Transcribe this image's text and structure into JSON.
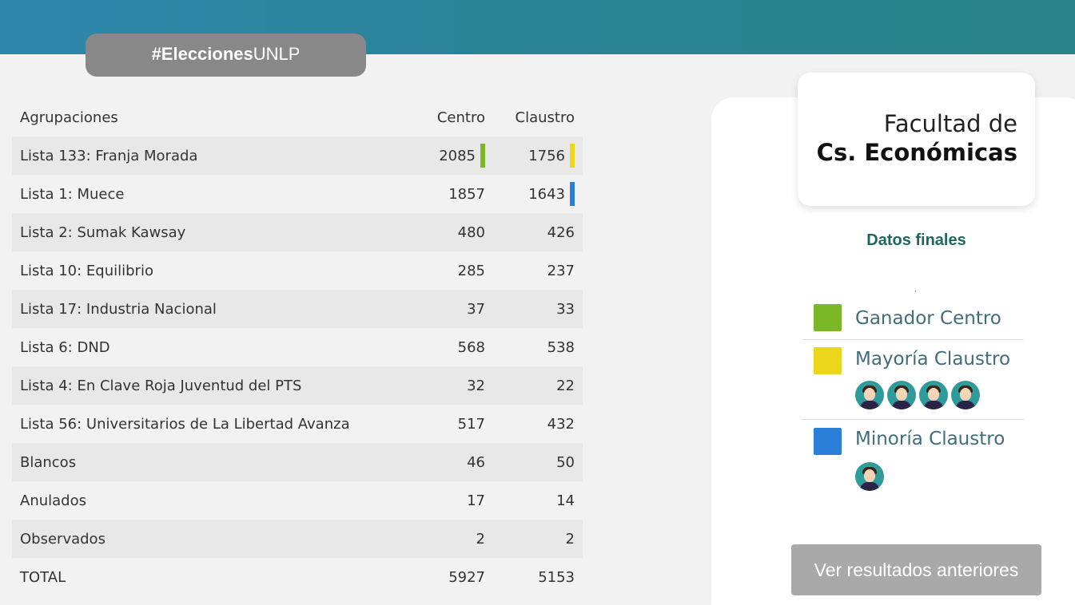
{
  "header": {
    "hashtag_bold": "#Elecciones",
    "hashtag_rest": "UNLP"
  },
  "table": {
    "col_name": "Agrupaciones",
    "col_centro": "Centro",
    "col_claustro": "Claustro",
    "rows": [
      {
        "name": "Lista 133: Franja Morada",
        "centro": "2085",
        "claustro": "1756"
      },
      {
        "name": "Lista 1: Muece",
        "centro": "1857",
        "claustro": "1643"
      },
      {
        "name": "Lista 2: Sumak Kawsay",
        "centro": "480",
        "claustro": "426"
      },
      {
        "name": "Lista 10: Equilibrio",
        "centro": "285",
        "claustro": "237"
      },
      {
        "name": "Lista 17: Industria Nacional",
        "centro": "37",
        "claustro": "33"
      },
      {
        "name": "Lista 6: DND",
        "centro": "568",
        "claustro": "538"
      },
      {
        "name": "Lista 4: En Clave Roja Juventud del PTS",
        "centro": "32",
        "claustro": "22"
      },
      {
        "name": "Lista 56: Universitarios de La Libertad Avanza",
        "centro": "517",
        "claustro": "432"
      },
      {
        "name": "Blancos",
        "centro": "46",
        "claustro": "50"
      },
      {
        "name": "Anulados",
        "centro": "17",
        "claustro": "14"
      },
      {
        "name": "Observados",
        "centro": "2",
        "claustro": "2"
      },
      {
        "name": "TOTAL",
        "centro": "5927",
        "claustro": "5153"
      }
    ]
  },
  "facultad": {
    "line1": "Facultad de",
    "line2": "Cs. Económicas"
  },
  "datos_finales": "Datos finales",
  "tiny_mark": ",",
  "legend": {
    "ganador_centro": {
      "label": "Ganador Centro",
      "color": "#7ab828"
    },
    "mayoria_claustro": {
      "label": "Mayoría Claustro",
      "color": "#ecd61b",
      "seats": 4
    },
    "minoria_claustro": {
      "label": "Minoría Claustro",
      "color": "#2c7fd8",
      "seats": 1
    }
  },
  "colors": {
    "ganador_centro": "#7ab828",
    "mayoria_claustro": "#ecd61b",
    "minoria_claustro": "#2c7fd8"
  },
  "button_label": "Ver resultados anteriores"
}
